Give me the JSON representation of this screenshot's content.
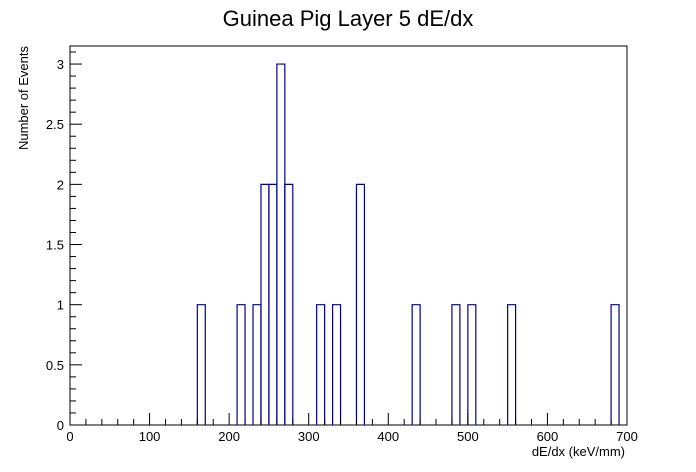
{
  "chart_data": {
    "type": "bar",
    "title": "Guinea Pig Layer 5 dE/dx",
    "xlabel": "dE/dx (keV/mm)",
    "ylabel": "Number of Events",
    "xlim": [
      0,
      700
    ],
    "ylim": [
      0,
      3.15
    ],
    "x_ticks": [
      "0",
      "100",
      "200",
      "300",
      "400",
      "500",
      "600",
      "700"
    ],
    "y_ticks": [
      "0",
      "0.5",
      "1",
      "1.5",
      "2",
      "2.5",
      "3"
    ],
    "bin_width": 10,
    "bins": [
      {
        "x": [
          160,
          170
        ],
        "value": 1
      },
      {
        "x": [
          210,
          220
        ],
        "value": 1
      },
      {
        "x": [
          230,
          240
        ],
        "value": 1
      },
      {
        "x": [
          240,
          250
        ],
        "value": 2
      },
      {
        "x": [
          250,
          260
        ],
        "value": 2
      },
      {
        "x": [
          260,
          270
        ],
        "value": 3
      },
      {
        "x": [
          270,
          280
        ],
        "value": 2
      },
      {
        "x": [
          310,
          320
        ],
        "value": 1
      },
      {
        "x": [
          330,
          340
        ],
        "value": 1
      },
      {
        "x": [
          360,
          370
        ],
        "value": 2
      },
      {
        "x": [
          430,
          440
        ],
        "value": 1
      },
      {
        "x": [
          480,
          490
        ],
        "value": 1
      },
      {
        "x": [
          500,
          510
        ],
        "value": 1
      },
      {
        "x": [
          550,
          560
        ],
        "value": 1
      },
      {
        "x": [
          680,
          690
        ],
        "value": 1
      }
    ],
    "line_color": "#00008b",
    "axis_color": "#000000",
    "grid": false,
    "legend": "none"
  }
}
